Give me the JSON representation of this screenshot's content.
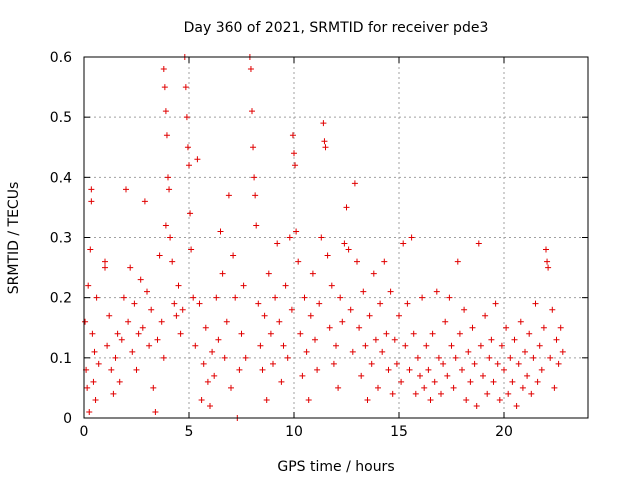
{
  "chart_data": {
    "type": "scatter",
    "title": "Day 360 of 2021, SRMTID for receiver pde3",
    "xlabel": "GPS time / hours",
    "ylabel": "SRMTID / TECUs",
    "xlim": [
      0,
      24
    ],
    "ylim": [
      0,
      0.6
    ],
    "xticks": [
      0,
      5,
      10,
      15,
      20
    ],
    "xtick_labels": [
      "0",
      "5",
      "10",
      "15",
      "20"
    ],
    "yticks": [
      0,
      0.1,
      0.2,
      0.3,
      0.4,
      0.5,
      0.6
    ],
    "ytick_labels": [
      "0",
      "0.1",
      "0.2",
      "0.3",
      "0.4",
      "0.5",
      "0.6"
    ],
    "grid": true,
    "marker": "+",
    "color": "#e00000",
    "series": [
      {
        "points": [
          [
            0.05,
            0.16
          ],
          [
            0.1,
            0.08
          ],
          [
            0.15,
            0.05
          ],
          [
            0.2,
            0.22
          ],
          [
            0.25,
            0.01
          ],
          [
            0.3,
            0.28
          ],
          [
            0.35,
            0.38
          ],
          [
            0.35,
            0.36
          ],
          [
            0.4,
            0.14
          ],
          [
            0.45,
            0.06
          ],
          [
            0.5,
            0.11
          ],
          [
            0.55,
            0.03
          ],
          [
            0.6,
            0.2
          ],
          [
            0.7,
            0.09
          ],
          [
            1.0,
            0.26
          ],
          [
            1.0,
            0.25
          ],
          [
            1.1,
            0.12
          ],
          [
            1.2,
            0.17
          ],
          [
            1.3,
            0.08
          ],
          [
            1.4,
            0.04
          ],
          [
            1.5,
            0.1
          ],
          [
            1.6,
            0.14
          ],
          [
            1.7,
            0.06
          ],
          [
            1.8,
            0.13
          ],
          [
            1.9,
            0.2
          ],
          [
            2.0,
            0.38
          ],
          [
            2.1,
            0.16
          ],
          [
            2.2,
            0.25
          ],
          [
            2.3,
            0.11
          ],
          [
            2.4,
            0.19
          ],
          [
            2.5,
            0.08
          ],
          [
            2.6,
            0.14
          ],
          [
            2.7,
            0.23
          ],
          [
            2.8,
            0.15
          ],
          [
            2.9,
            0.36
          ],
          [
            3.0,
            0.21
          ],
          [
            3.1,
            0.12
          ],
          [
            3.2,
            0.18
          ],
          [
            3.3,
            0.05
          ],
          [
            3.4,
            0.01
          ],
          [
            3.5,
            0.13
          ],
          [
            3.6,
            0.27
          ],
          [
            3.7,
            0.16
          ],
          [
            3.8,
            0.1
          ],
          [
            3.9,
            0.32
          ],
          [
            3.8,
            0.58
          ],
          [
            3.85,
            0.55
          ],
          [
            3.9,
            0.51
          ],
          [
            3.95,
            0.47
          ],
          [
            4.0,
            0.4
          ],
          [
            4.05,
            0.38
          ],
          [
            4.1,
            0.3
          ],
          [
            4.2,
            0.26
          ],
          [
            4.3,
            0.19
          ],
          [
            4.4,
            0.17
          ],
          [
            4.5,
            0.22
          ],
          [
            4.6,
            0.14
          ],
          [
            4.7,
            0.18
          ],
          [
            4.8,
            0.6
          ],
          [
            4.85,
            0.55
          ],
          [
            4.9,
            0.5
          ],
          [
            4.95,
            0.45
          ],
          [
            5.0,
            0.42
          ],
          [
            5.05,
            0.34
          ],
          [
            5.1,
            0.28
          ],
          [
            5.2,
            0.2
          ],
          [
            5.3,
            0.12
          ],
          [
            5.4,
            0.43
          ],
          [
            5.5,
            0.19
          ],
          [
            5.6,
            0.03
          ],
          [
            5.7,
            0.09
          ],
          [
            5.8,
            0.15
          ],
          [
            5.9,
            0.06
          ],
          [
            6.0,
            0.02
          ],
          [
            6.1,
            0.11
          ],
          [
            6.2,
            0.07
          ],
          [
            6.3,
            0.2
          ],
          [
            6.4,
            0.13
          ],
          [
            6.5,
            0.31
          ],
          [
            6.6,
            0.24
          ],
          [
            6.7,
            0.1
          ],
          [
            6.8,
            0.16
          ],
          [
            6.9,
            0.37
          ],
          [
            7.0,
            0.05
          ],
          [
            7.1,
            0.27
          ],
          [
            7.2,
            0.2
          ],
          [
            7.3,
            0.0
          ],
          [
            7.4,
            0.08
          ],
          [
            7.5,
            0.14
          ],
          [
            7.6,
            0.22
          ],
          [
            7.7,
            0.1
          ],
          [
            7.9,
            0.6
          ],
          [
            7.95,
            0.58
          ],
          [
            8.0,
            0.51
          ],
          [
            8.05,
            0.45
          ],
          [
            8.1,
            0.4
          ],
          [
            8.15,
            0.37
          ],
          [
            8.2,
            0.32
          ],
          [
            8.3,
            0.19
          ],
          [
            8.4,
            0.12
          ],
          [
            8.5,
            0.08
          ],
          [
            8.6,
            0.17
          ],
          [
            8.7,
            0.03
          ],
          [
            8.8,
            0.24
          ],
          [
            8.9,
            0.14
          ],
          [
            9.0,
            0.09
          ],
          [
            9.1,
            0.2
          ],
          [
            9.2,
            0.29
          ],
          [
            9.3,
            0.16
          ],
          [
            9.4,
            0.06
          ],
          [
            9.5,
            0.12
          ],
          [
            9.6,
            0.22
          ],
          [
            9.7,
            0.1
          ],
          [
            9.8,
            0.3
          ],
          [
            9.9,
            0.18
          ],
          [
            9.95,
            0.47
          ],
          [
            10.0,
            0.44
          ],
          [
            10.05,
            0.42
          ],
          [
            10.1,
            0.31
          ],
          [
            10.2,
            0.26
          ],
          [
            10.3,
            0.14
          ],
          [
            10.4,
            0.07
          ],
          [
            10.5,
            0.2
          ],
          [
            10.6,
            0.11
          ],
          [
            10.7,
            0.03
          ],
          [
            10.8,
            0.17
          ],
          [
            10.9,
            0.24
          ],
          [
            11.0,
            0.13
          ],
          [
            11.1,
            0.08
          ],
          [
            11.2,
            0.19
          ],
          [
            11.3,
            0.3
          ],
          [
            11.4,
            0.49
          ],
          [
            11.45,
            0.46
          ],
          [
            11.5,
            0.45
          ],
          [
            11.6,
            0.27
          ],
          [
            11.7,
            0.15
          ],
          [
            11.8,
            0.22
          ],
          [
            11.9,
            0.09
          ],
          [
            12.0,
            0.12
          ],
          [
            12.1,
            0.05
          ],
          [
            12.2,
            0.2
          ],
          [
            12.3,
            0.16
          ],
          [
            12.4,
            0.29
          ],
          [
            12.5,
            0.35
          ],
          [
            12.6,
            0.28
          ],
          [
            12.7,
            0.18
          ],
          [
            12.8,
            0.11
          ],
          [
            12.9,
            0.39
          ],
          [
            13.0,
            0.26
          ],
          [
            13.1,
            0.15
          ],
          [
            13.2,
            0.07
          ],
          [
            13.3,
            0.21
          ],
          [
            13.4,
            0.12
          ],
          [
            13.5,
            0.03
          ],
          [
            13.6,
            0.17
          ],
          [
            13.7,
            0.09
          ],
          [
            13.8,
            0.24
          ],
          [
            13.9,
            0.13
          ],
          [
            14.0,
            0.05
          ],
          [
            14.1,
            0.19
          ],
          [
            14.2,
            0.11
          ],
          [
            14.3,
            0.26
          ],
          [
            14.4,
            0.14
          ],
          [
            14.5,
            0.08
          ],
          [
            14.6,
            0.21
          ],
          [
            14.7,
            0.04
          ],
          [
            14.8,
            0.13
          ],
          [
            14.9,
            0.09
          ],
          [
            15.0,
            0.17
          ],
          [
            15.1,
            0.06
          ],
          [
            15.2,
            0.29
          ],
          [
            15.3,
            0.12
          ],
          [
            15.4,
            0.19
          ],
          [
            15.5,
            0.08
          ],
          [
            15.6,
            0.3
          ],
          [
            15.7,
            0.14
          ],
          [
            15.8,
            0.04
          ],
          [
            15.9,
            0.1
          ],
          [
            16.0,
            0.07
          ],
          [
            16.1,
            0.2
          ],
          [
            16.2,
            0.05
          ],
          [
            16.3,
            0.12
          ],
          [
            16.4,
            0.08
          ],
          [
            16.5,
            0.03
          ],
          [
            16.6,
            0.14
          ],
          [
            16.7,
            0.06
          ],
          [
            16.8,
            0.21
          ],
          [
            16.9,
            0.1
          ],
          [
            17.0,
            0.04
          ],
          [
            17.1,
            0.09
          ],
          [
            17.2,
            0.16
          ],
          [
            17.3,
            0.07
          ],
          [
            17.4,
            0.2
          ],
          [
            17.5,
            0.12
          ],
          [
            17.6,
            0.05
          ],
          [
            17.7,
            0.1
          ],
          [
            17.8,
            0.26
          ],
          [
            17.9,
            0.14
          ],
          [
            18.0,
            0.08
          ],
          [
            18.1,
            0.18
          ],
          [
            18.2,
            0.03
          ],
          [
            18.3,
            0.11
          ],
          [
            18.4,
            0.06
          ],
          [
            18.5,
            0.15
          ],
          [
            18.6,
            0.09
          ],
          [
            18.7,
            0.02
          ],
          [
            18.8,
            0.29
          ],
          [
            18.9,
            0.12
          ],
          [
            19.0,
            0.07
          ],
          [
            19.1,
            0.17
          ],
          [
            19.2,
            0.04
          ],
          [
            19.3,
            0.1
          ],
          [
            19.4,
            0.13
          ],
          [
            19.5,
            0.06
          ],
          [
            19.6,
            0.19
          ],
          [
            19.7,
            0.09
          ],
          [
            19.8,
            0.03
          ],
          [
            19.9,
            0.12
          ],
          [
            20.0,
            0.08
          ],
          [
            20.1,
            0.15
          ],
          [
            20.2,
            0.04
          ],
          [
            20.3,
            0.1
          ],
          [
            20.4,
            0.06
          ],
          [
            20.5,
            0.13
          ],
          [
            20.6,
            0.02
          ],
          [
            20.7,
            0.09
          ],
          [
            20.8,
            0.16
          ],
          [
            20.9,
            0.05
          ],
          [
            21.0,
            0.11
          ],
          [
            21.1,
            0.07
          ],
          [
            21.2,
            0.14
          ],
          [
            21.3,
            0.04
          ],
          [
            21.4,
            0.1
          ],
          [
            21.5,
            0.19
          ],
          [
            21.6,
            0.06
          ],
          [
            21.7,
            0.12
          ],
          [
            21.8,
            0.08
          ],
          [
            21.9,
            0.15
          ],
          [
            22.0,
            0.28
          ],
          [
            22.05,
            0.26
          ],
          [
            22.1,
            0.25
          ],
          [
            22.2,
            0.1
          ],
          [
            22.3,
            0.18
          ],
          [
            22.4,
            0.05
          ],
          [
            22.5,
            0.13
          ],
          [
            22.6,
            0.09
          ],
          [
            22.7,
            0.15
          ],
          [
            22.8,
            0.11
          ]
        ]
      }
    ]
  }
}
